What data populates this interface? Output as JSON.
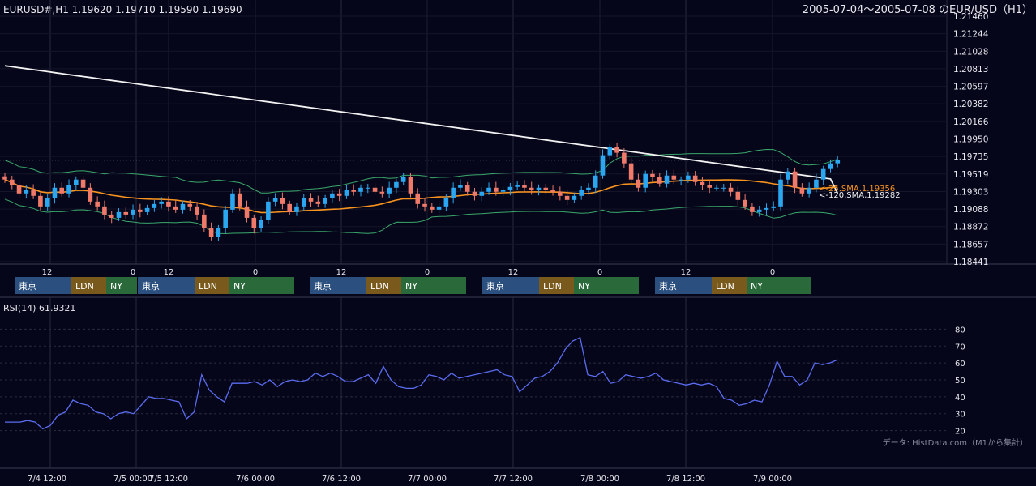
{
  "header": {
    "ohlc": "EURUSD#,H1 1.19620 1.19710 1.19590 1.19690",
    "range_title": "2005-07-04～2005-07-08 のEUR/USD（H1）"
  },
  "colors": {
    "background": "#06061a",
    "bull": "#2aa7f0",
    "bear": "#f07a6a",
    "sma25": "#f7931e",
    "sma120": "#f2f2f2",
    "bollinger": "#3aa86b",
    "rsi": "#5a6cf0",
    "session_tokyo": "#2b4f7e",
    "session_ldn": "#7a5a1c",
    "session_ny": "#2a6a3a"
  },
  "chart_data": [
    {
      "type": "candlestick",
      "title": "EUR/USD (H1)",
      "ylim": [
        1.18441,
        1.2146
      ],
      "y_ticks": [
        "1.21460",
        "1.21244",
        "1.21028",
        "1.20813",
        "1.20597",
        "1.20382",
        "1.20166",
        "1.19950",
        "1.19735",
        "1.19519",
        "1.19303",
        "1.19088",
        "1.18872",
        "1.18657",
        "1.18441"
      ],
      "x_ticks": [
        "12",
        "0",
        "12",
        "0",
        "12",
        "0",
        "12",
        "0",
        "12",
        "0"
      ],
      "close": [
        1.1945,
        1.1938,
        1.1928,
        1.1932,
        1.1925,
        1.1912,
        1.1922,
        1.1935,
        1.1928,
        1.1938,
        1.1945,
        1.1935,
        1.1918,
        1.1912,
        1.1902,
        1.1898,
        1.1905,
        1.1902,
        1.1908,
        1.1905,
        1.191,
        1.1915,
        1.1918,
        1.1912,
        1.1908,
        1.1915,
        1.1912,
        1.1902,
        1.1885,
        1.1875,
        1.1885,
        1.1908,
        1.1928,
        1.1912,
        1.1898,
        1.1885,
        1.1895,
        1.1918,
        1.1922,
        1.1915,
        1.1905,
        1.1912,
        1.1922,
        1.1918,
        1.1915,
        1.1922,
        1.1928,
        1.1925,
        1.1932,
        1.193,
        1.1935,
        1.1935,
        1.193,
        1.1928,
        1.1935,
        1.1942,
        1.1948,
        1.1928,
        1.1915,
        1.1912,
        1.1908,
        1.1912,
        1.1922,
        1.1935,
        1.1938,
        1.193,
        1.1925,
        1.193,
        1.1935,
        1.193,
        1.1932,
        1.1936,
        1.1938,
        1.1935,
        1.1932,
        1.1935,
        1.1932,
        1.193,
        1.1925,
        1.192,
        1.1925,
        1.1932,
        1.1935,
        1.195,
        1.1975,
        1.1985,
        1.1978,
        1.1965,
        1.1945,
        1.1935,
        1.1952,
        1.1948,
        1.194,
        1.195,
        1.1945,
        1.1945,
        1.195,
        1.1942,
        1.1938,
        1.1935,
        1.1935,
        1.1935,
        1.193,
        1.192,
        1.1912,
        1.1905,
        1.1908,
        1.191,
        1.1912,
        1.1945,
        1.1955,
        1.1935,
        1.1928,
        1.1935,
        1.1945,
        1.1958,
        1.1965,
        1.1969
      ],
      "annotations": [
        "<-25,SMA,1.19356",
        "<-120,SMA,1.19282"
      ],
      "series": [
        {
          "name": "25,SMA",
          "last": 1.19356
        },
        {
          "name": "120,SMA",
          "last": 1.19282
        }
      ]
    },
    {
      "type": "line",
      "title": "RSI(14) 61.9321",
      "ylim": [
        15,
        85
      ],
      "y_ticks": [
        "80",
        "70",
        "60",
        "50",
        "40",
        "30",
        "20"
      ],
      "values": [
        25,
        25,
        25,
        26,
        25,
        21,
        23,
        29,
        31,
        38,
        36,
        35,
        31,
        30,
        27,
        30,
        31,
        30,
        35,
        40,
        39,
        39,
        38,
        37,
        27,
        31,
        53,
        44,
        40,
        37,
        48,
        48,
        48,
        49,
        47,
        50,
        46,
        49,
        50,
        49,
        50,
        54,
        52,
        54,
        52,
        49,
        49,
        51,
        53,
        48,
        58,
        50,
        46,
        45,
        45,
        47,
        53,
        52,
        50,
        54,
        51,
        52,
        53,
        54,
        55,
        56,
        53,
        52,
        43,
        47,
        51,
        52,
        55,
        60,
        68,
        73,
        75,
        53,
        52,
        55,
        48,
        49,
        53,
        52,
        51,
        52,
        54,
        50,
        49,
        48,
        47,
        48,
        47,
        48,
        46,
        39,
        38,
        35,
        36,
        38,
        37,
        47,
        61,
        52,
        52,
        47,
        50,
        60,
        59,
        60,
        62
      ],
      "watermark": "データ: HistData.com（M1から集計）"
    }
  ],
  "sessions": [
    {
      "tokyo": "東京",
      "ldn": "LDN",
      "ny": "NY"
    },
    {
      "tokyo": "東京",
      "ldn": "LDN",
      "ny": "NY"
    },
    {
      "tokyo": "東京",
      "ldn": "LDN",
      "ny": "NY"
    },
    {
      "tokyo": "東京",
      "ldn": "LDN",
      "ny": "NY"
    },
    {
      "tokyo": "東京",
      "ldn": "LDN",
      "ny": "NY"
    }
  ],
  "time_axis": [
    "7/4 12:00",
    "7/5 00:00",
    "7/5 12:00",
    "7/6 00:00",
    "7/6 12:00",
    "7/7 00:00",
    "7/7 12:00",
    "7/8 00:00",
    "7/8 12:00",
    "7/9 00:00"
  ]
}
